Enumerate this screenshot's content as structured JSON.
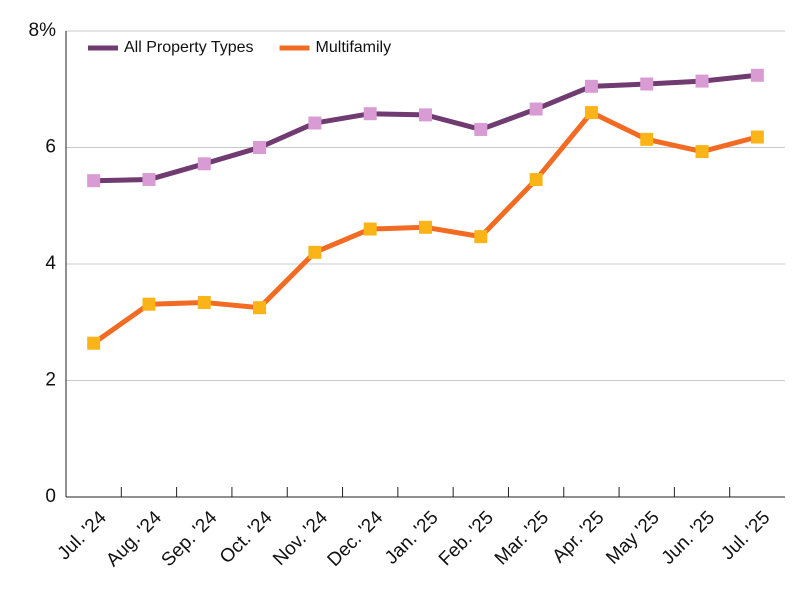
{
  "chart_data": {
    "type": "line",
    "categories": [
      "Jul. '24",
      "Aug. '24",
      "Sep. '24",
      "Oct. '24",
      "Nov. '24",
      "Dec. '24",
      "Jan. '25",
      "Feb. '25",
      "Mar. '25",
      "Apr. '25",
      "May '25",
      "Jun. '25",
      "Jul. '25"
    ],
    "series": [
      {
        "name": "All Property Types",
        "color": "#6f3b70",
        "marker_color": "#d89bd4",
        "values": [
          5.43,
          5.45,
          5.72,
          6.0,
          6.42,
          6.58,
          6.56,
          6.31,
          6.66,
          7.05,
          7.09,
          7.14,
          7.24
        ]
      },
      {
        "name": "Multifamily",
        "color": "#f26b22",
        "marker_color": "#fbb418",
        "values": [
          2.64,
          3.31,
          3.34,
          3.25,
          4.2,
          4.6,
          4.63,
          4.47,
          5.45,
          6.6,
          6.14,
          5.93,
          6.18
        ]
      }
    ],
    "ylim": [
      0,
      8
    ],
    "yticks": [
      0,
      2,
      4,
      6,
      {
        "value": 8,
        "label": "8%"
      }
    ],
    "grid": true,
    "legend": "upper left"
  }
}
